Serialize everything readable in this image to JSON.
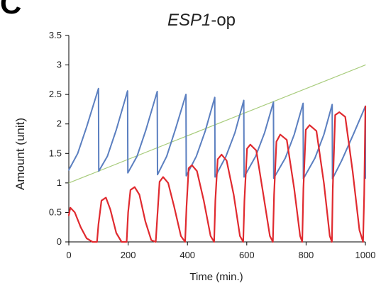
{
  "panel_label": "C",
  "chart_data": {
    "type": "line",
    "title_italic": "ESP1",
    "title_rest": "-op",
    "xlabel": "Time (min.)",
    "ylabel": "Amount (unit)",
    "xlim": [
      0,
      1000
    ],
    "ylim": [
      0,
      3.5
    ],
    "xticks": [
      0,
      200,
      400,
      600,
      800,
      1000
    ],
    "yticks": [
      0,
      0.5,
      1,
      1.5,
      2,
      2.5,
      3,
      3.5
    ],
    "grid": false,
    "colors": {
      "blue": "#5b7fc0",
      "red": "#e02a2f",
      "green": "#a8cc7c",
      "axis": "#000000"
    },
    "series": [
      {
        "color": "green",
        "points": [
          [
            0,
            1.0
          ],
          [
            1000,
            3.0
          ]
        ]
      },
      {
        "color": "blue",
        "points": [
          [
            0,
            1.22
          ],
          [
            30,
            1.5
          ],
          [
            60,
            1.95
          ],
          [
            100,
            2.6
          ],
          [
            101,
            1.2
          ],
          [
            130,
            1.45
          ],
          [
            160,
            1.9
          ],
          [
            198,
            2.56
          ],
          [
            199,
            1.17
          ],
          [
            230,
            1.45
          ],
          [
            260,
            1.9
          ],
          [
            298,
            2.55
          ],
          [
            299,
            1.14
          ],
          [
            330,
            1.45
          ],
          [
            360,
            1.92
          ],
          [
            395,
            2.5
          ],
          [
            396,
            1.12
          ],
          [
            430,
            1.45
          ],
          [
            460,
            1.88
          ],
          [
            492,
            2.45
          ],
          [
            493,
            1.1
          ],
          [
            530,
            1.45
          ],
          [
            560,
            1.85
          ],
          [
            590,
            2.4
          ],
          [
            591,
            1.1
          ],
          [
            630,
            1.45
          ],
          [
            660,
            1.85
          ],
          [
            690,
            2.37
          ],
          [
            691,
            1.08
          ],
          [
            730,
            1.42
          ],
          [
            760,
            1.82
          ],
          [
            790,
            2.35
          ],
          [
            791,
            1.07
          ],
          [
            830,
            1.42
          ],
          [
            860,
            1.82
          ],
          [
            888,
            2.33
          ],
          [
            889,
            1.07
          ],
          [
            920,
            1.38
          ],
          [
            960,
            1.83
          ],
          [
            1000,
            2.3
          ],
          [
            1001,
            1.08
          ]
        ]
      },
      {
        "color": "red",
        "points": [
          [
            0,
            0.45
          ],
          [
            5,
            0.58
          ],
          [
            20,
            0.5
          ],
          [
            40,
            0.25
          ],
          [
            60,
            0.06
          ],
          [
            80,
            0.0
          ],
          [
            95,
            0.0
          ],
          [
            100,
            0.3
          ],
          [
            110,
            0.7
          ],
          [
            125,
            0.75
          ],
          [
            140,
            0.55
          ],
          [
            160,
            0.15
          ],
          [
            178,
            0.0
          ],
          [
            195,
            0.0
          ],
          [
            200,
            0.5
          ],
          [
            208,
            0.88
          ],
          [
            222,
            0.93
          ],
          [
            238,
            0.8
          ],
          [
            258,
            0.35
          ],
          [
            278,
            0.03
          ],
          [
            293,
            0.0
          ],
          [
            298,
            0.4
          ],
          [
            306,
            1.02
          ],
          [
            318,
            1.1
          ],
          [
            335,
            1.0
          ],
          [
            355,
            0.6
          ],
          [
            378,
            0.1
          ],
          [
            392,
            0.0
          ],
          [
            397,
            0.6
          ],
          [
            404,
            1.25
          ],
          [
            415,
            1.3
          ],
          [
            432,
            1.2
          ],
          [
            455,
            0.7
          ],
          [
            478,
            0.1
          ],
          [
            490,
            0.0
          ],
          [
            494,
            0.7
          ],
          [
            502,
            1.4
          ],
          [
            515,
            1.48
          ],
          [
            532,
            1.38
          ],
          [
            556,
            0.8
          ],
          [
            577,
            0.1
          ],
          [
            588,
            0.0
          ],
          [
            592,
            0.7
          ],
          [
            601,
            1.58
          ],
          [
            612,
            1.65
          ],
          [
            632,
            1.55
          ],
          [
            656,
            0.8
          ],
          [
            678,
            0.1
          ],
          [
            688,
            0.0
          ],
          [
            692,
            0.8
          ],
          [
            700,
            1.7
          ],
          [
            713,
            1.82
          ],
          [
            735,
            1.73
          ],
          [
            760,
            0.9
          ],
          [
            780,
            0.1
          ],
          [
            787,
            0.0
          ],
          [
            791,
            0.9
          ],
          [
            799,
            1.9
          ],
          [
            812,
            1.98
          ],
          [
            835,
            1.88
          ],
          [
            860,
            1.0
          ],
          [
            880,
            0.1
          ],
          [
            887,
            0.0
          ],
          [
            890,
            0.9
          ],
          [
            898,
            2.15
          ],
          [
            912,
            2.2
          ],
          [
            932,
            2.12
          ],
          [
            957,
            1.2
          ],
          [
            980,
            0.2
          ],
          [
            992,
            0.0
          ],
          [
            996,
            0.8
          ],
          [
            1000,
            2.3
          ]
        ]
      }
    ]
  }
}
